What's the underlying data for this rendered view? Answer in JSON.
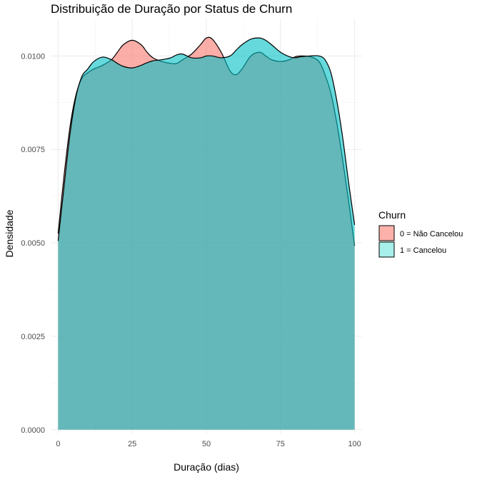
{
  "chart_data": {
    "type": "area",
    "title": "Distribuição de Duração por Status de Churn",
    "xlabel": "Duração (dias)",
    "ylabel": "Densidade",
    "xlim": [
      -2.5,
      102.5
    ],
    "ylim": [
      -0.0001,
      0.011
    ],
    "xticks": [
      0,
      25,
      50,
      75,
      100
    ],
    "xtick_labels": [
      "0",
      "25",
      "50",
      "75",
      "100"
    ],
    "yticks": [
      0.0,
      0.0025,
      0.005,
      0.0075,
      0.01
    ],
    "ytick_labels": [
      "0.0000",
      "0.0025",
      "0.0050",
      "0.0075",
      "0.0100"
    ],
    "grid": true,
    "legend": {
      "title": "Churn",
      "position": "right",
      "entries": [
        "0 = Não Cancelou",
        "1 = Cancelou"
      ]
    },
    "x": [
      0,
      2,
      4,
      6,
      8,
      10,
      12,
      15,
      18,
      20,
      22,
      25,
      28,
      30,
      32,
      35,
      38,
      40,
      42,
      45,
      48,
      50,
      52,
      55,
      58,
      60,
      62,
      65,
      68,
      70,
      72,
      75,
      78,
      80,
      82,
      85,
      88,
      90,
      92,
      94,
      96,
      98,
      100
    ],
    "series": [
      {
        "name": "0 = Não Cancelou",
        "color": "#F8766D",
        "values": [
          0.00525,
          0.0068,
          0.0081,
          0.00895,
          0.0094,
          0.00955,
          0.00965,
          0.00975,
          0.0099,
          0.0101,
          0.0103,
          0.01042,
          0.0103,
          0.0101,
          0.00995,
          0.00985,
          0.0098,
          0.0098,
          0.0099,
          0.01005,
          0.0103,
          0.01048,
          0.01045,
          0.0101,
          0.0096,
          0.0095,
          0.00965,
          0.01,
          0.0101,
          0.01,
          0.0099,
          0.00985,
          0.0099,
          0.00998,
          0.01,
          0.00998,
          0.00985,
          0.0095,
          0.009,
          0.0082,
          0.0072,
          0.0061,
          0.00492
        ]
      },
      {
        "name": "1 = Cancelou",
        "color": "#00BFC4",
        "values": [
          0.00505,
          0.0065,
          0.0079,
          0.0089,
          0.00945,
          0.00965,
          0.00985,
          0.00997,
          0.0099,
          0.0098,
          0.00972,
          0.00968,
          0.00975,
          0.00982,
          0.00987,
          0.0099,
          0.00995,
          0.01003,
          0.01005,
          0.00995,
          0.00995,
          0.01,
          0.01,
          0.00995,
          0.01,
          0.01015,
          0.0103,
          0.01045,
          0.01048,
          0.01042,
          0.0103,
          0.0101,
          0.00998,
          0.00995,
          0.00998,
          0.01,
          0.01,
          0.0099,
          0.00955,
          0.0088,
          0.0078,
          0.0066,
          0.00548
        ]
      }
    ]
  }
}
